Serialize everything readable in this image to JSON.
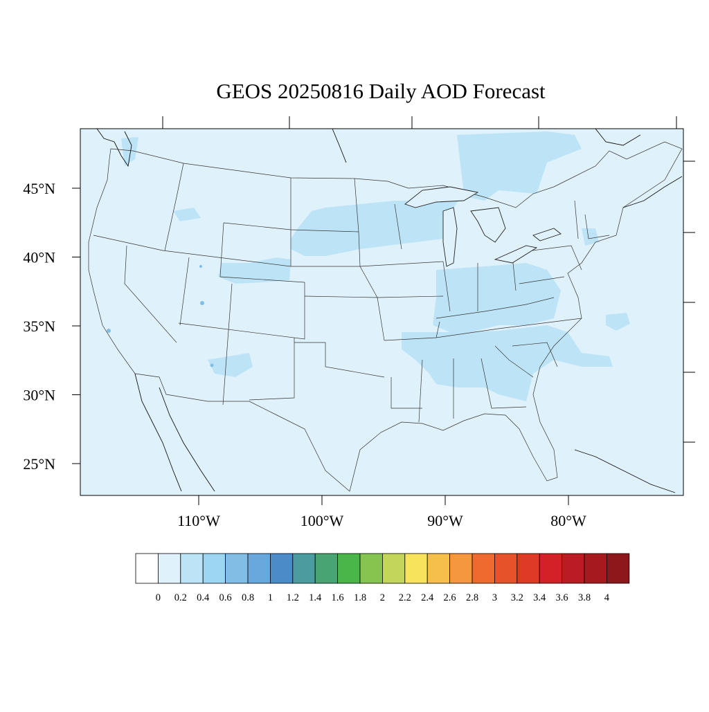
{
  "title": "GEOS 20250816 Daily AOD Forecast",
  "map": {
    "background_color": "#dff1fa",
    "lat_labels": [
      {
        "lat": 45,
        "text": "45°N"
      },
      {
        "lat": 40,
        "text": "40°N"
      },
      {
        "lat": 35,
        "text": "35°N"
      },
      {
        "lat": 30,
        "text": "30°N"
      },
      {
        "lat": 25,
        "text": "25°N"
      }
    ],
    "lon_labels": [
      {
        "lon": -110,
        "text": "110°W"
      },
      {
        "lon": -100,
        "text": "100°W"
      },
      {
        "lon": -90,
        "text": "90°W"
      },
      {
        "lon": -80,
        "text": "80°W"
      }
    ]
  },
  "colorbar": {
    "colors": [
      "#ffffff",
      "#dff1fa",
      "#bde4f6",
      "#9dd6f2",
      "#82bde6",
      "#68a8dc",
      "#4a8bc8",
      "#4b9c9e",
      "#48a472",
      "#4ab549",
      "#86c34f",
      "#c4d65a",
      "#f8e45c",
      "#f6bf4c",
      "#f4973f",
      "#ef6a2e",
      "#e6522a",
      "#df3a26",
      "#d42127",
      "#bb1c23",
      "#a61a1f",
      "#8e171b"
    ],
    "labels": [
      "0",
      "0.2",
      "0.4",
      "0.6",
      "0.8",
      "1",
      "1.2",
      "1.4",
      "1.6",
      "1.8",
      "2",
      "2.2",
      "2.4",
      "2.6",
      "2.8",
      "3",
      "3.2",
      "3.4",
      "3.6",
      "3.8",
      "4"
    ]
  }
}
